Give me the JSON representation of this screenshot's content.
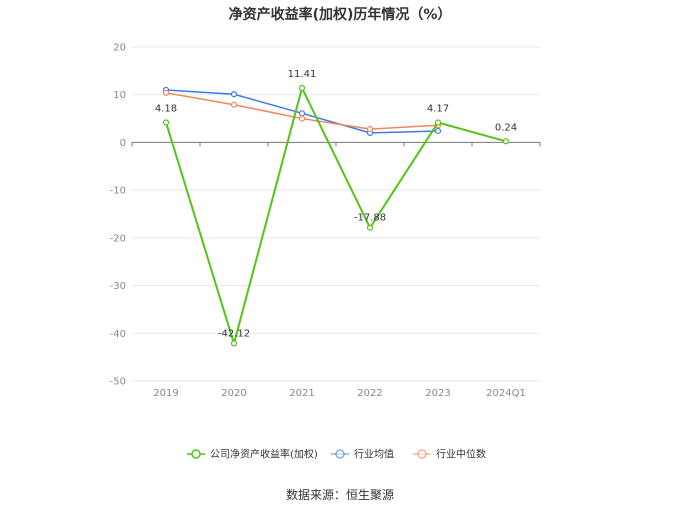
{
  "title": "净资产收益率(加权)历年情况（%）",
  "source": "数据来源：恒生聚源",
  "chart_data": {
    "type": "line",
    "title": "净资产收益率(加权)历年情况（%）",
    "xlabel": "",
    "ylabel": "",
    "categories": [
      "2019",
      "2020",
      "2021",
      "2022",
      "2023",
      "2024Q1"
    ],
    "ylim": [
      -50,
      20
    ],
    "yticks": [
      20,
      10,
      0,
      -10,
      -20,
      -30,
      -40,
      -50
    ],
    "grid": true,
    "legend_position": "bottom",
    "series": [
      {
        "name": "公司净资产收益率(加权)",
        "color": "#52c41a",
        "values": [
          4.18,
          -42.12,
          11.41,
          -17.88,
          4.17,
          0.24
        ],
        "labels": [
          "4.18",
          "-42.12",
          "11.41",
          "-17.88",
          "4.17",
          "0.24"
        ]
      },
      {
        "name": "行业均值",
        "color": "#3d7ae6",
        "values": [
          11.0,
          10.1,
          6.1,
          2.0,
          2.4,
          null
        ]
      },
      {
        "name": "行业中位数",
        "color": "#f0845c",
        "values": [
          10.4,
          7.9,
          5.0,
          2.8,
          3.6,
          null
        ]
      }
    ]
  }
}
